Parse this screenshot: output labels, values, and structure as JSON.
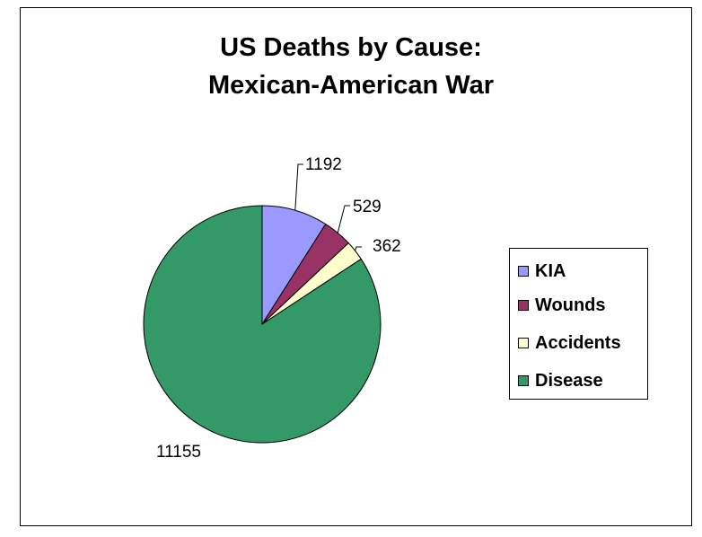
{
  "chart_data": {
    "type": "pie",
    "title_lines": [
      "US Deaths by Cause:",
      "Mexican-American War"
    ],
    "slices": [
      {
        "label": "KIA",
        "value": 1192,
        "color": "#9999ff"
      },
      {
        "label": "Wounds",
        "value": 529,
        "color": "#993366"
      },
      {
        "label": "Accidents",
        "value": 362,
        "color": "#ffffcc"
      },
      {
        "label": "Disease",
        "value": 11155,
        "color": "#339966"
      }
    ],
    "legend_position": "right"
  }
}
